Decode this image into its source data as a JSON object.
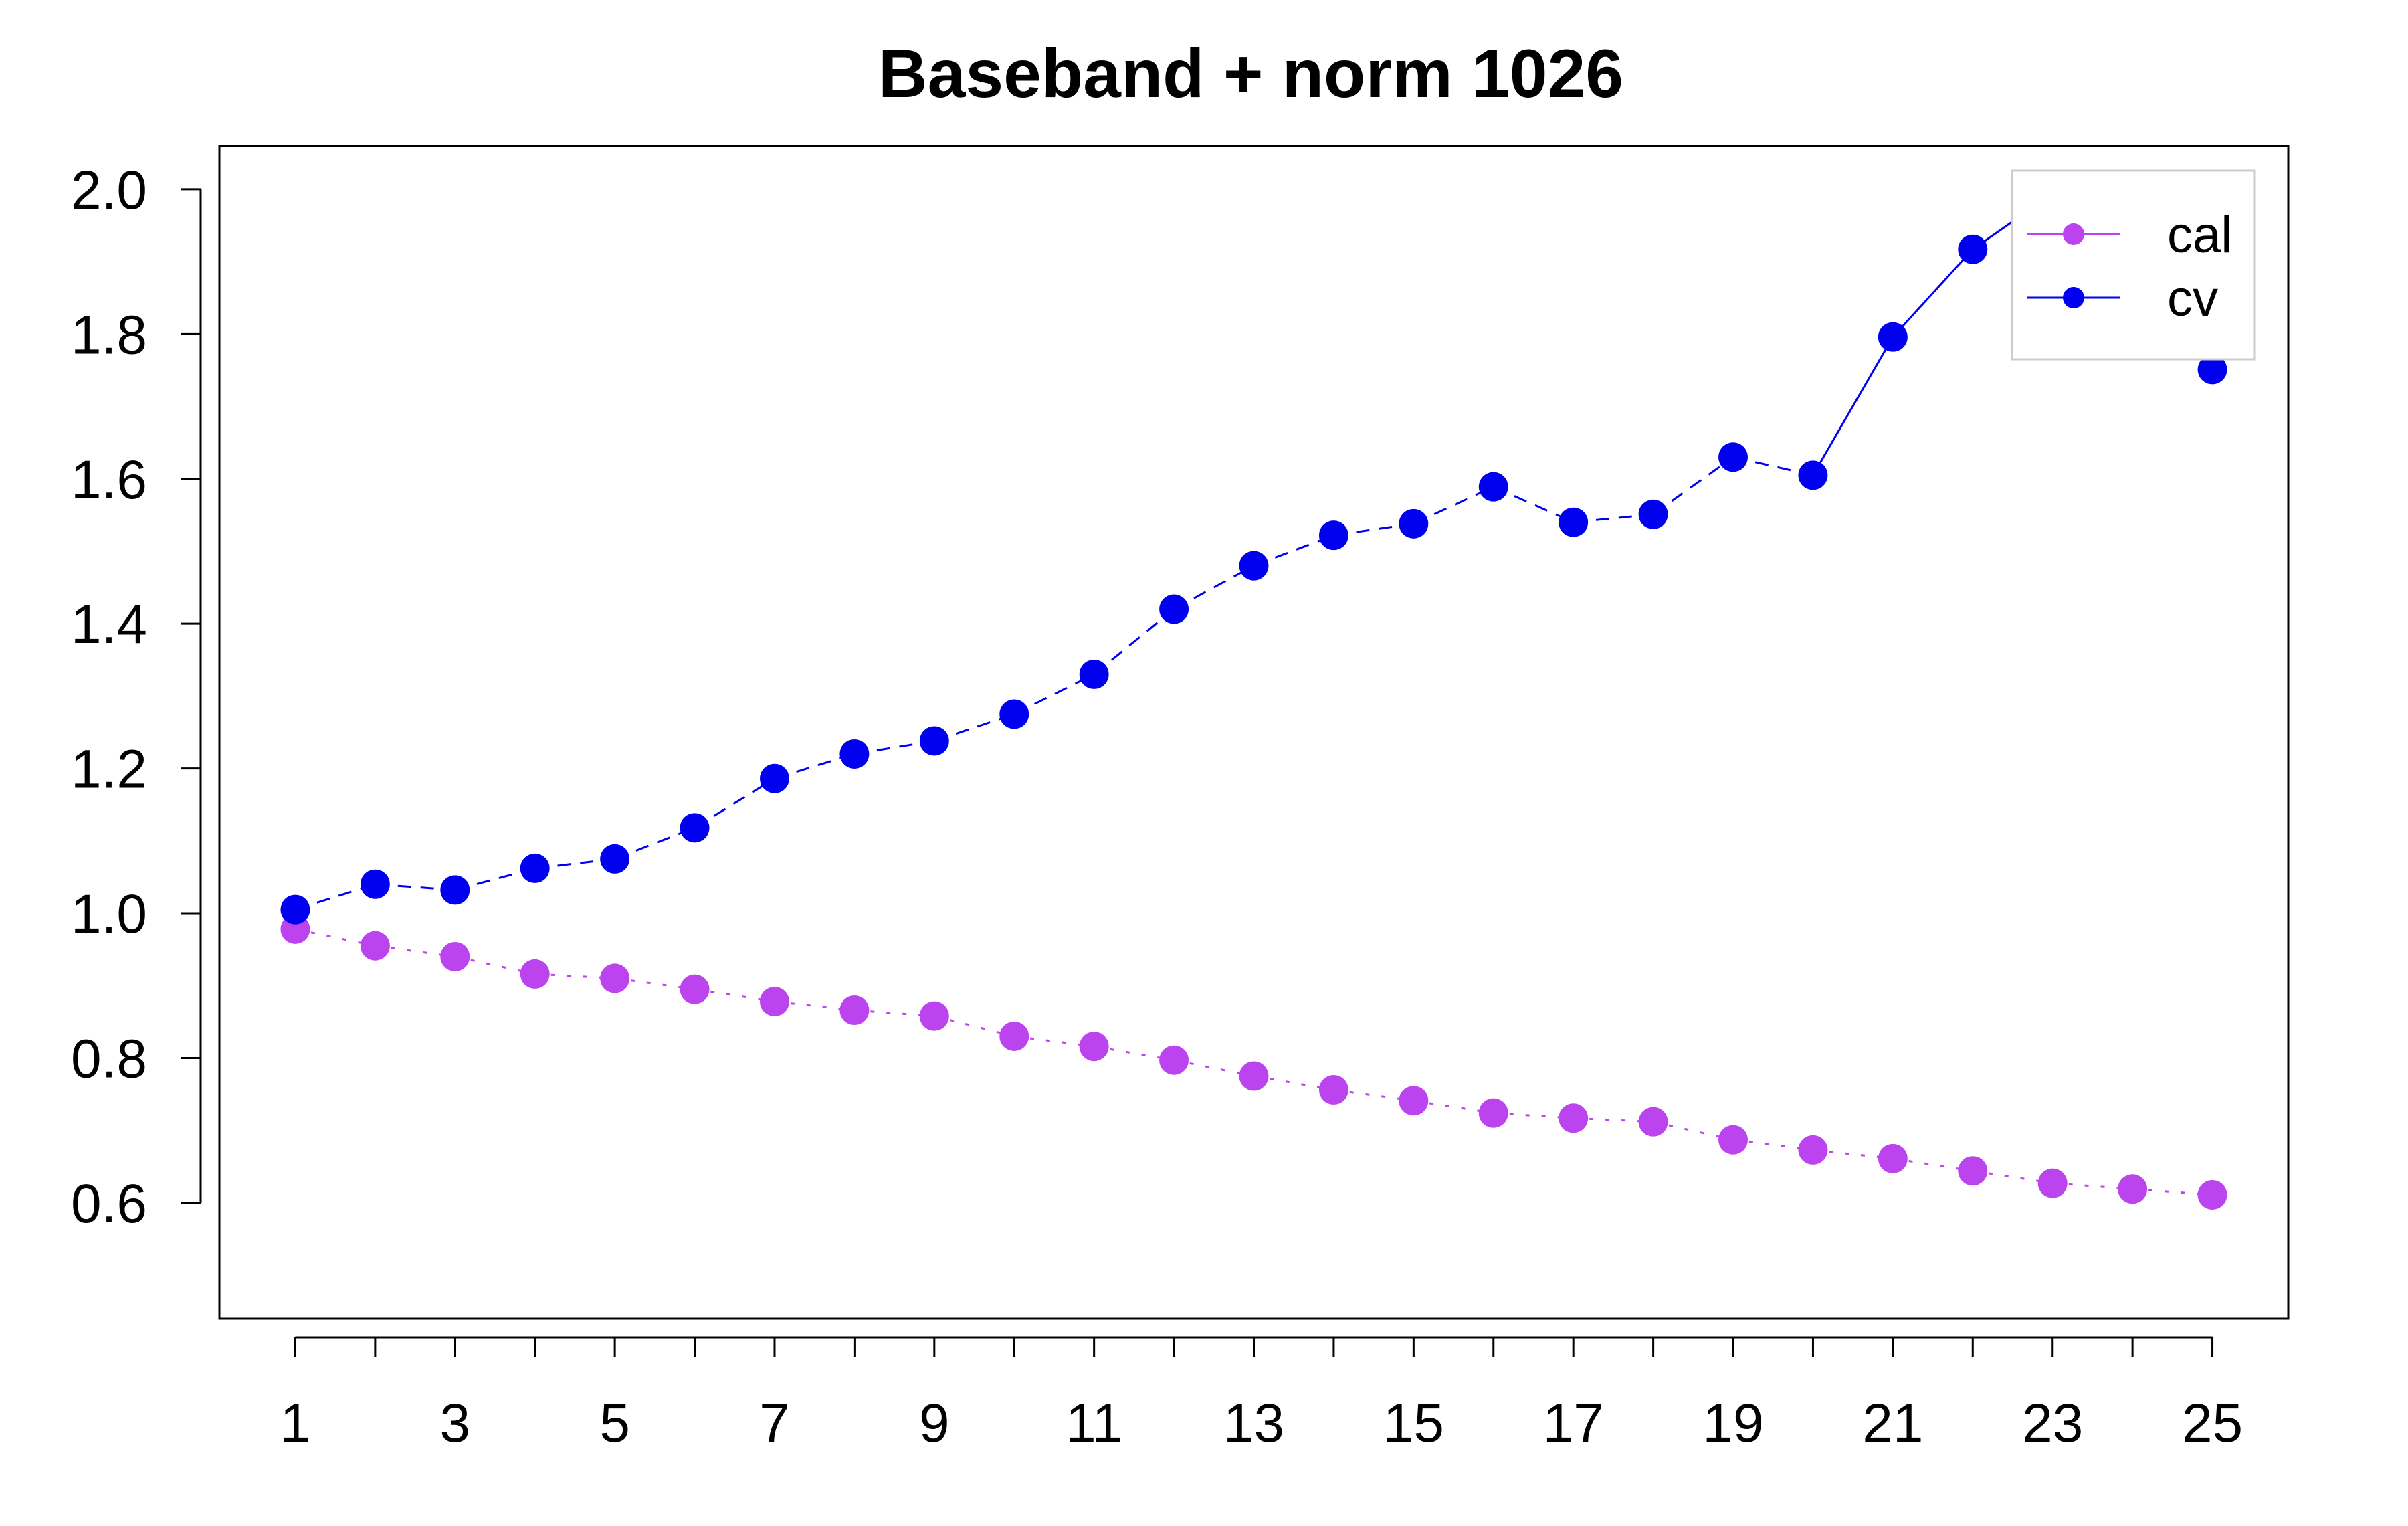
{
  "chart_data": {
    "type": "line",
    "title": "Baseband + norm 1026",
    "xlabel": "",
    "ylabel": "",
    "x": [
      1,
      2,
      3,
      4,
      5,
      6,
      7,
      8,
      9,
      10,
      11,
      12,
      13,
      14,
      15,
      16,
      17,
      18,
      19,
      20,
      21,
      22,
      23,
      24,
      25
    ],
    "x_tick_labels": [
      "1",
      "3",
      "5",
      "7",
      "9",
      "11",
      "13",
      "15",
      "17",
      "19",
      "21",
      "23",
      "25"
    ],
    "y_tick_labels": [
      "0.6",
      "0.8",
      "1.0",
      "1.2",
      "1.4",
      "1.6",
      "1.8",
      "2.0"
    ],
    "xlim": [
      0.05,
      25.95
    ],
    "ylim": [
      0.44,
      2.06
    ],
    "grid": false,
    "legend_position": "top-right",
    "series": [
      {
        "name": "cal",
        "color": "#bb44ee",
        "line_style": "dotted",
        "values": [
          0.978,
          0.955,
          0.94,
          0.916,
          0.91,
          0.895,
          0.878,
          0.866,
          0.858,
          0.83,
          0.816,
          0.797,
          0.775,
          0.756,
          0.741,
          0.724,
          0.717,
          0.712,
          0.687,
          0.673,
          0.661,
          0.644,
          0.627,
          0.619,
          0.611
        ]
      },
      {
        "name": "cv",
        "color": "#0000ee",
        "line_style": "dashed-to-solid",
        "values": [
          1.005,
          1.04,
          1.032,
          1.062,
          1.075,
          1.118,
          1.186,
          1.22,
          1.238,
          1.275,
          1.33,
          1.42,
          1.48,
          1.522,
          1.538,
          1.589,
          1.54,
          1.551,
          1.63,
          1.605,
          1.796,
          1.917,
          1.994,
          1.888,
          1.751
        ]
      }
    ]
  }
}
